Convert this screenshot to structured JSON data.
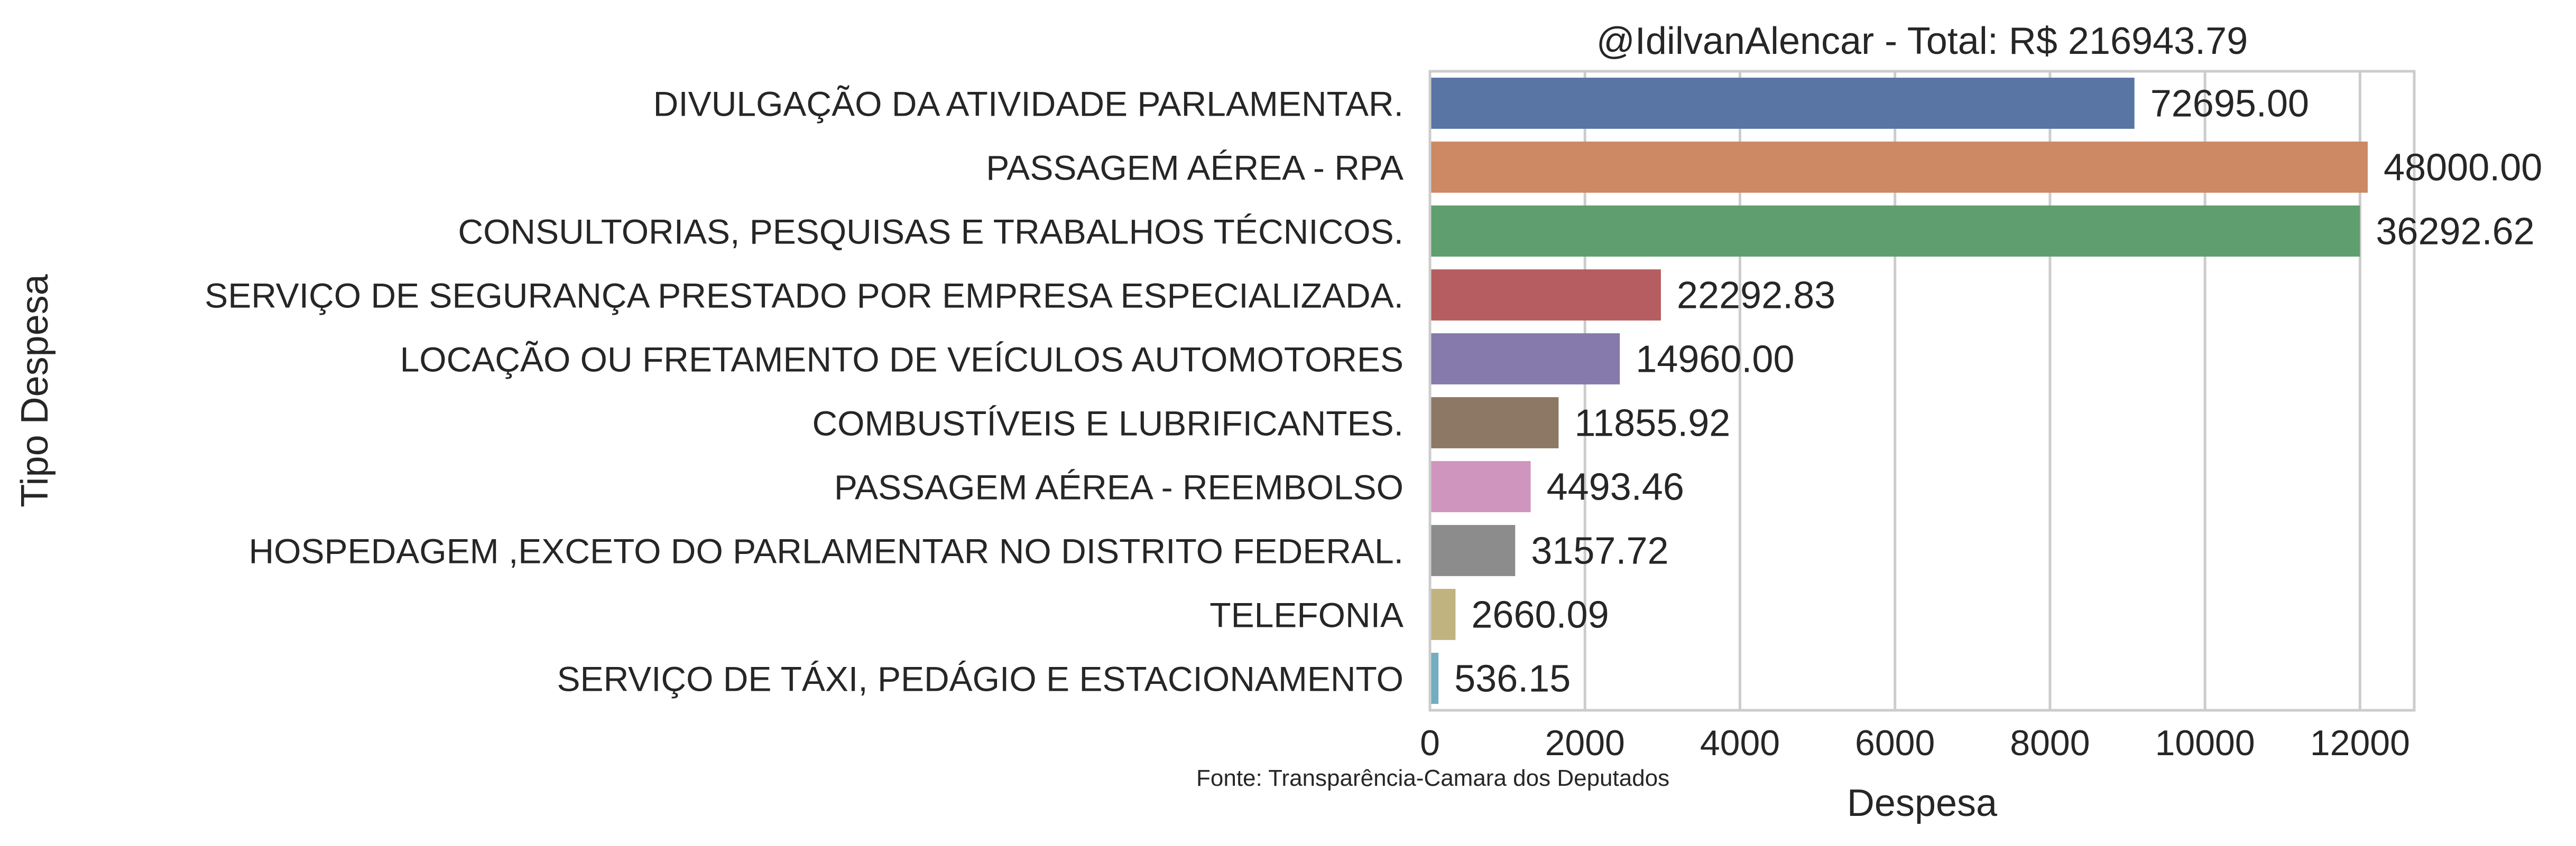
{
  "chart_data": {
    "type": "bar",
    "orientation": "horizontal",
    "title": "@IdilvanAlencar - Total: R$ 216943.79",
    "xlabel": "Despesa",
    "ylabel": "Tipo Despesa",
    "caption": "Fonte: Transparência-Camara dos Deputados",
    "xlim": [
      0,
      12700
    ],
    "xticks": [
      0,
      2000,
      4000,
      6000,
      8000,
      10000,
      12000
    ],
    "xtick_labels": [
      "0",
      "2000",
      "4000",
      "6000",
      "8000",
      "10000",
      "12000"
    ],
    "grid": true,
    "categories": [
      "DIVULGAÇÃO DA ATIVIDADE PARLAMENTAR.",
      "PASSAGEM AÉREA - RPA",
      "CONSULTORIAS, PESQUISAS E TRABALHOS TÉCNICOS.",
      "SERVIÇO DE SEGURANÇA PRESTADO POR EMPRESA ESPECIALIZADA.",
      "LOCAÇÃO OU FRETAMENTO DE VEÍCULOS AUTOMOTORES",
      "COMBUSTÍVEIS E LUBRIFICANTES.",
      "PASSAGEM AÉREA - REEMBOLSO",
      "HOSPEDAGEM ,EXCETO DO PARLAMENTAR NO DISTRITO FEDERAL.",
      "TELEFONIA",
      "SERVIÇO DE TÁXI, PEDÁGIO E ESTACIONAMENTO"
    ],
    "values": [
      9090,
      12100,
      12000,
      2980,
      2450,
      1660,
      1300,
      1100,
      330,
      110
    ],
    "data_labels": [
      "72695.00",
      "48000.00",
      "36292.62",
      "22292.83",
      "14960.00",
      "11855.92",
      "4493.46",
      "3157.72",
      "2660.09",
      "536.15"
    ],
    "colors": [
      "#5975a4",
      "#cc8963",
      "#5f9e6e",
      "#b55d60",
      "#857aab",
      "#8d7866",
      "#d095bf",
      "#8c8c8c",
      "#c1b37f",
      "#71aec0"
    ]
  }
}
